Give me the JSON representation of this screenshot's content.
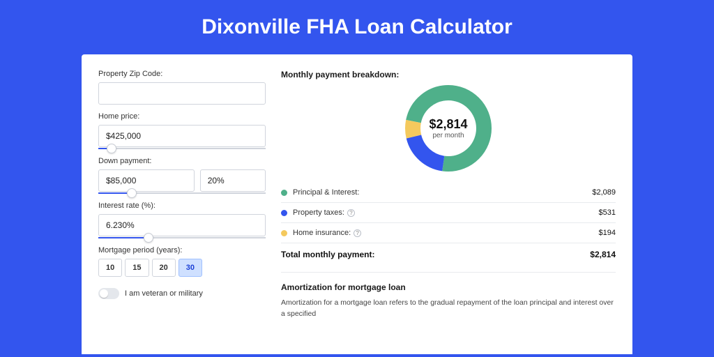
{
  "title": "Dixonville FHA Loan Calculator",
  "colors": {
    "page_bg": "#3355ee",
    "card_bg": "#ffffff",
    "green": "#4fb08a",
    "blue": "#3355ee",
    "yellow": "#f4c95d"
  },
  "form": {
    "zip_label": "Property Zip Code:",
    "zip_value": "",
    "home_price_label": "Home price:",
    "home_price_value": "$425,000",
    "home_price_slider_pct": 8,
    "down_payment_label": "Down payment:",
    "down_payment_value": "$85,000",
    "down_payment_pct_value": "20%",
    "down_payment_slider_pct": 20,
    "rate_label": "Interest rate (%):",
    "rate_value": "6.230%",
    "rate_slider_pct": 30,
    "period_label": "Mortgage period (years):",
    "periods": [
      "10",
      "15",
      "20",
      "30"
    ],
    "period_active_index": 3,
    "veteran_label": "I am veteran or military"
  },
  "breakdown": {
    "title": "Monthly payment breakdown:",
    "chart": {
      "type": "donut",
      "size": 124,
      "thickness": 22,
      "center_amount": "$2,814",
      "center_sub": "per month",
      "slices": [
        {
          "label": "Principal & Interest",
          "value": 2089,
          "color": "#4fb08a",
          "share": 0.742
        },
        {
          "label": "Property taxes",
          "value": 531,
          "color": "#3355ee",
          "share": 0.189
        },
        {
          "label": "Home insurance",
          "value": 194,
          "color": "#f4c95d",
          "share": 0.069
        }
      ]
    },
    "items": [
      {
        "label": "Principal & Interest:",
        "value": "$2,089",
        "color": "#4fb08a",
        "help": false
      },
      {
        "label": "Property taxes:",
        "value": "$531",
        "color": "#3355ee",
        "help": true
      },
      {
        "label": "Home insurance:",
        "value": "$194",
        "color": "#f4c95d",
        "help": true
      }
    ],
    "total_label": "Total monthly payment:",
    "total_value": "$2,814"
  },
  "amortization": {
    "title": "Amortization for mortgage loan",
    "desc": "Amortization for a mortgage loan refers to the gradual repayment of the loan principal and interest over a specified"
  }
}
